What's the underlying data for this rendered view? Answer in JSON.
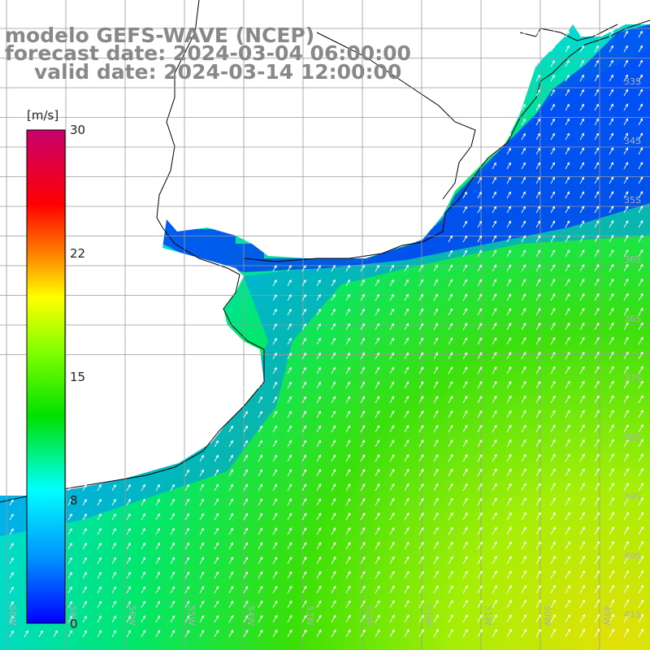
{
  "titles": {
    "line1": "modelo GEFS-WAVE (NCEP)",
    "line2": "forecast date: 2024-03-04 06:00:00",
    "line3": "valid date: 2024-03-14 12:00:00"
  },
  "colorbar": {
    "unit": "[m/s]",
    "ticks": [
      "30",
      "22",
      "15",
      "8",
      "0"
    ]
  },
  "latitude_labels": [
    "33S",
    "34S",
    "35S",
    "36S",
    "37S",
    "38S",
    "39S",
    "40S",
    "41S"
  ],
  "longitude_labels": [
    "58W",
    "56W",
    "55W",
    "54W",
    "53W",
    "52W",
    "51W",
    "50W",
    "49W"
  ],
  "colors": {
    "land": "#ffffff",
    "grid": "#9a9a9a",
    "coast": "#000000",
    "arrow": "#ffffff"
  }
}
